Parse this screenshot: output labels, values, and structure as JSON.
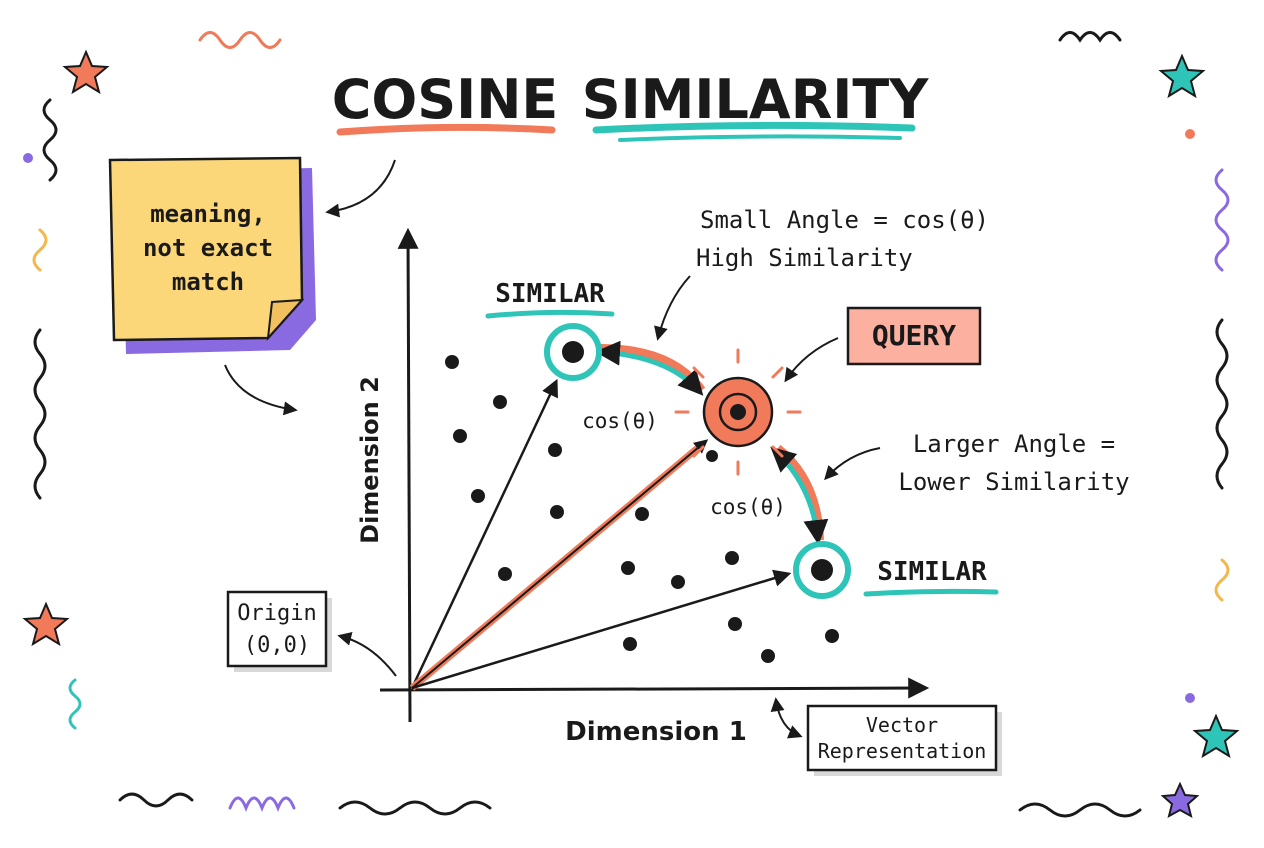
{
  "title": {
    "words": [
      "COSINE",
      "SIMILARITY"
    ]
  },
  "note": {
    "lines": [
      "meaning,",
      "not exact",
      "match"
    ]
  },
  "axes": {
    "y_label": "Dimension 2",
    "x_label": "Dimension 1"
  },
  "nodes": [
    {
      "label": "SIMILAR"
    },
    {
      "label": "QUERY"
    },
    {
      "label": "SIMILAR"
    }
  ],
  "angle_labels": [
    "cos(θ)",
    "cos(θ)"
  ],
  "annotations": [
    {
      "lines": [
        "Small Angle = cos(θ)",
        "High Similarity"
      ]
    },
    {
      "lines": [
        "Larger Angle =",
        "Lower Similarity"
      ]
    }
  ],
  "origin_label": {
    "lines": [
      "Origin",
      "(0,0)"
    ]
  },
  "vector_label": {
    "lines": [
      "Vector",
      "Representation"
    ]
  }
}
